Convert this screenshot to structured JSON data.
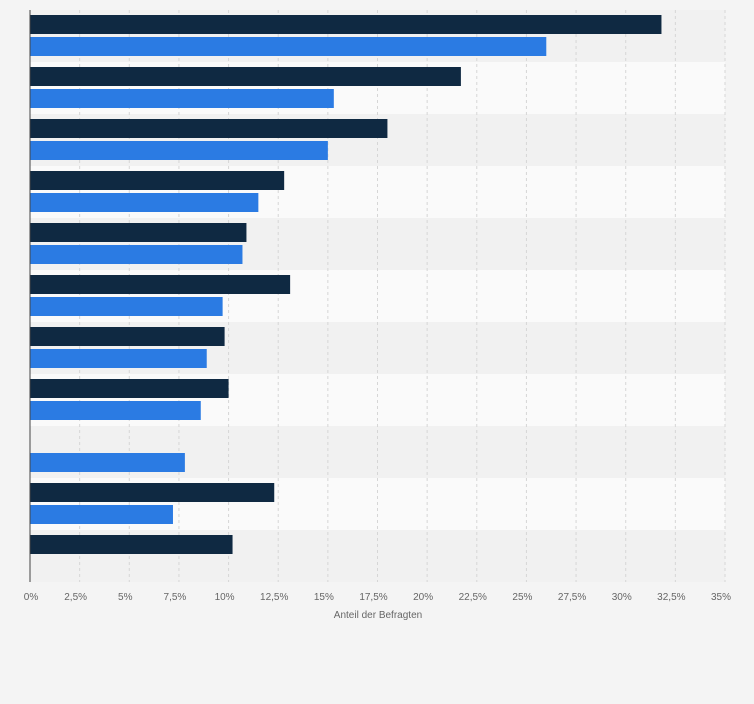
{
  "colors": {
    "background": "#f4f4f4",
    "band_light": "#fafafa",
    "band_dark": "#f1f1f1",
    "gridline": "#d6d6d6",
    "axis": "#444444",
    "series_1": "#0f2942",
    "series_2": "#2b7be3"
  },
  "chart_data": {
    "type": "bar",
    "orientation": "horizontal",
    "title": "",
    "xlabel": "Anteil der Befragten",
    "ylabel": "",
    "xlim": [
      0,
      35
    ],
    "x_ticks": [
      0,
      2.5,
      5,
      7.5,
      10,
      12.5,
      15,
      17.5,
      20,
      22.5,
      25,
      27.5,
      30,
      32.5,
      35
    ],
    "x_tick_labels": [
      "0%",
      "2,5%",
      "5%",
      "7,5%",
      "10%",
      "12,5%",
      "15%",
      "17,5%",
      "20%",
      "22,5%",
      "25%",
      "27,5%",
      "30%",
      "32,5%",
      "35%"
    ],
    "grid": true,
    "legend": "none",
    "category_count": 11,
    "series": [
      {
        "color": "#0f2942",
        "values": [
          31.8,
          21.7,
          18.0,
          12.8,
          10.9,
          13.1,
          9.8,
          10.0,
          null,
          12.3,
          10.2
        ]
      },
      {
        "color": "#2b7be3",
        "values": [
          26.0,
          15.3,
          15.0,
          11.5,
          10.7,
          9.7,
          8.9,
          8.6,
          7.8,
          7.2,
          null
        ]
      }
    ]
  }
}
